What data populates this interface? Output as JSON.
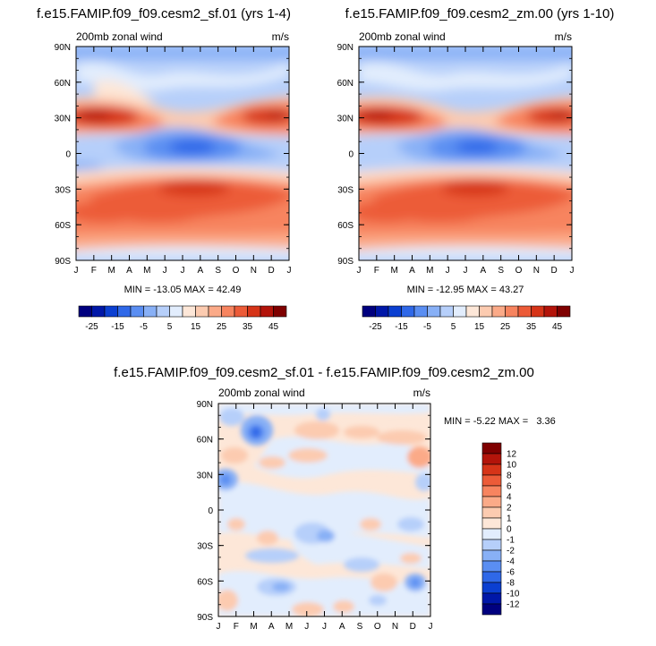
{
  "chart_data": [
    {
      "type": "heatmap",
      "title": "f.e15.FAMIP.f09_f09.cesm2_sf.01 (yrs 1-4)",
      "subtitle_left": "200mb zonal wind",
      "subtitle_right": "m/s",
      "x_ticks": [
        "J",
        "F",
        "M",
        "A",
        "M",
        "J",
        "J",
        "A",
        "S",
        "O",
        "N",
        "D",
        "J"
      ],
      "y_ticks": [
        "90N",
        "60N",
        "30N",
        "0",
        "30S",
        "60S",
        "90S"
      ],
      "min_max": "MIN = -13.05 MAX = 42.49",
      "min": -13.05,
      "max": 42.49,
      "colorbar_labels": [
        "-25",
        "-15",
        "-5",
        "5",
        "15",
        "25",
        "35",
        "45"
      ]
    },
    {
      "type": "heatmap",
      "title": "f.e15.FAMIP.f09_f09.cesm2_zm.00 (yrs 1-10)",
      "subtitle_left": "200mb zonal wind",
      "subtitle_right": "m/s",
      "x_ticks": [
        "J",
        "F",
        "M",
        "A",
        "M",
        "J",
        "J",
        "A",
        "S",
        "O",
        "N",
        "D",
        "J"
      ],
      "y_ticks": [
        "90N",
        "60N",
        "30N",
        "0",
        "30S",
        "60S",
        "90S"
      ],
      "min_max": "MIN = -12.95 MAX = 43.27",
      "min": -12.95,
      "max": 43.27,
      "colorbar_labels": [
        "-25",
        "-15",
        "-5",
        "5",
        "15",
        "25",
        "35",
        "45"
      ]
    },
    {
      "type": "heatmap",
      "title": "f.e15.FAMIP.f09_f09.cesm2_sf.01 - f.e15.FAMIP.f09_f09.cesm2_zm.00",
      "subtitle_left": "200mb zonal wind",
      "subtitle_right": "m/s",
      "x_ticks": [
        "J",
        "F",
        "M",
        "A",
        "M",
        "J",
        "J",
        "A",
        "S",
        "O",
        "N",
        "D",
        "J"
      ],
      "y_ticks": [
        "90N",
        "60N",
        "30N",
        "0",
        "30S",
        "60S",
        "90S"
      ],
      "min_max": "MIN = -5.22 MAX =   3.36",
      "min": -5.22,
      "max": 3.36,
      "colorbar_labels": [
        "12",
        "10",
        "8",
        "6",
        "4",
        "2",
        "1",
        "0",
        "-1",
        "-2",
        "-4",
        "-6",
        "-8",
        "-10",
        "-12"
      ]
    }
  ],
  "colors": {
    "full_scale": [
      "#00007f",
      "#0017a8",
      "#0b3fd1",
      "#2f68e8",
      "#5a8ef2",
      "#88b0f6",
      "#b6cffa",
      "#e2edfd",
      "#fde7d8",
      "#fccbb0",
      "#fbaa88",
      "#f7845f",
      "#ec5b38",
      "#d63418",
      "#b3140a",
      "#7f0000"
    ],
    "diff_scale_top_to_bottom": [
      "#7f0000",
      "#b3140a",
      "#d63418",
      "#ec5b38",
      "#f7845f",
      "#fbaa88",
      "#fccbb0",
      "#fde7d8",
      "#e2edfd",
      "#b6cffa",
      "#88b0f6",
      "#5a8ef2",
      "#2f68e8",
      "#0b3fd1",
      "#0017a8",
      "#00007f"
    ]
  }
}
